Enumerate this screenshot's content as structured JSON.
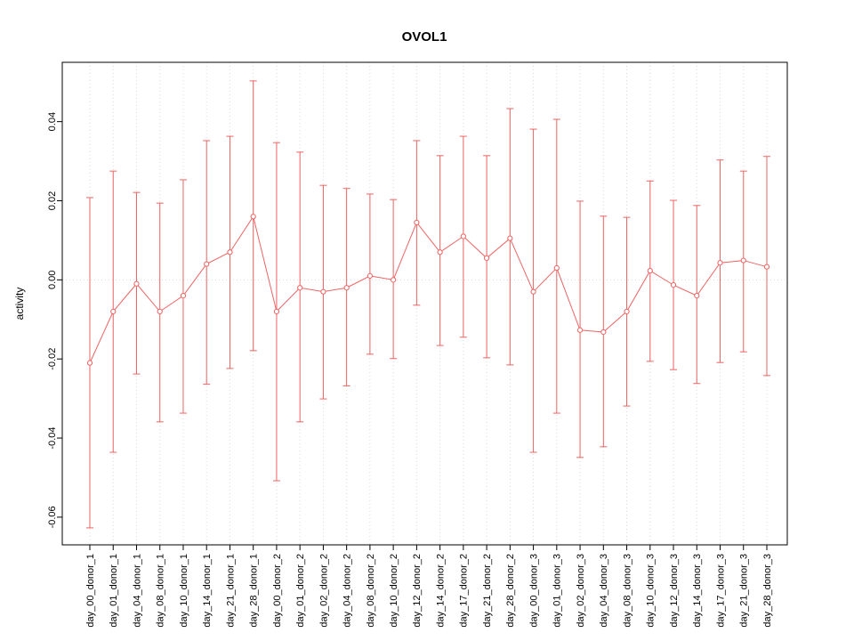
{
  "chart_data": {
    "type": "line",
    "title": "OVOL1",
    "xlabel": "",
    "ylabel": "activity",
    "ylim": [
      -0.067,
      0.055
    ],
    "yticks": [
      -0.06,
      -0.04,
      -0.02,
      0.0,
      0.02,
      0.04
    ],
    "grid": "dotted vertical gridline at each category, dotted horizontal line at y=0",
    "legend": "none",
    "color": "#ee6363",
    "categories": [
      "day_00_donor_1",
      "day_01_donor_1",
      "day_04_donor_1",
      "day_08_donor_1",
      "day_10_donor_1",
      "day_14_donor_1",
      "day_21_donor_1",
      "day_28_donor_1",
      "day_00_donor_2",
      "day_01_donor_2",
      "day_02_donor_2",
      "day_04_donor_2",
      "day_08_donor_2",
      "day_10_donor_2",
      "day_12_donor_2",
      "day_14_donor_2",
      "day_17_donor_2",
      "day_21_donor_2",
      "day_28_donor_2",
      "day_00_donor_3",
      "day_01_donor_3",
      "day_02_donor_3",
      "day_04_donor_3",
      "day_08_donor_3",
      "day_10_donor_3",
      "day_12_donor_3",
      "day_14_donor_3",
      "day_17_donor_3",
      "day_21_donor_3",
      "day_28_donor_3"
    ],
    "values": [
      -0.021,
      -0.008,
      -0.001,
      -0.008,
      -0.004,
      0.004,
      0.007,
      0.016,
      -0.008,
      -0.002,
      -0.003,
      -0.002,
      0.001,
      0.0,
      0.0145,
      0.007,
      0.011,
      0.0055,
      0.0105,
      -0.003,
      0.003,
      -0.0127,
      -0.0132,
      -0.008,
      0.0023,
      -0.0013,
      -0.004,
      0.0043,
      0.0049,
      0.0033
    ],
    "error_upper": [
      0.0208,
      0.0275,
      0.0221,
      0.0194,
      0.0253,
      0.0352,
      0.0363,
      0.0503,
      0.0347,
      0.0323,
      0.0239,
      0.0231,
      0.0217,
      0.0203,
      0.0352,
      0.0314,
      0.0363,
      0.0314,
      0.0433,
      0.0381,
      0.0406,
      0.0199,
      0.0161,
      0.0158,
      0.025,
      0.0201,
      0.0188,
      0.0303,
      0.0275,
      0.0312
    ],
    "error_lower": [
      -0.0627,
      -0.0436,
      -0.0238,
      -0.0359,
      -0.0337,
      -0.0264,
      -0.0224,
      -0.0179,
      -0.0508,
      -0.0359,
      -0.0301,
      -0.0268,
      -0.0188,
      -0.0199,
      -0.0064,
      -0.0166,
      -0.0145,
      -0.0197,
      -0.0215,
      -0.0436,
      -0.0337,
      -0.0449,
      -0.0422,
      -0.0319,
      -0.0206,
      -0.0227,
      -0.0262,
      -0.0209,
      -0.0182,
      -0.0242
    ]
  }
}
